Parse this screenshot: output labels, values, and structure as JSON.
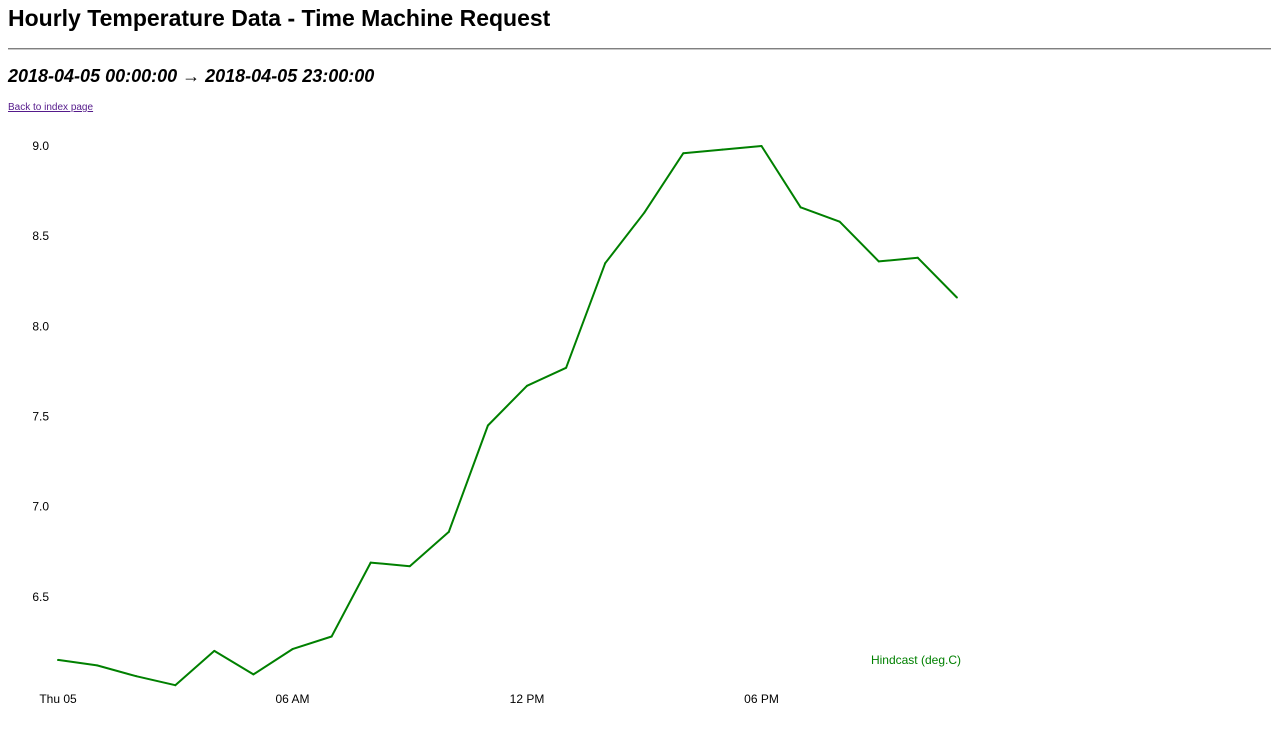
{
  "page": {
    "title": "Hourly Temperature Data - Time Machine Request",
    "range": "2018-04-05 00:00:00 → 2018-04-05 23:00:00",
    "back_link": "Back to index page"
  },
  "colors": {
    "series": "#008000",
    "link": "#551a8b",
    "text": "#000000"
  },
  "chart_data": {
    "type": "line",
    "title": "",
    "xlabel": "",
    "ylabel": "",
    "ylim": [
      6.0,
      9.0
    ],
    "xlim": [
      "2018-04-05 00:00:00",
      "2018-04-06 00:00:00"
    ],
    "grid": false,
    "legend": "bottom-right",
    "y_ticks": [
      "6.5",
      "7.0",
      "7.5",
      "8.0",
      "8.5",
      "9.0"
    ],
    "x_ticks": [
      {
        "x": "2018-04-05 00:00:00",
        "label": "Thu 05"
      },
      {
        "x": "2018-04-05 06:00:00",
        "label": "06 AM"
      },
      {
        "x": "2018-04-05 12:00:00",
        "label": "12 PM"
      },
      {
        "x": "2018-04-05 18:00:00",
        "label": "06 PM"
      }
    ],
    "x": [
      "2018-04-05 00:00:00",
      "2018-04-05 01:00:00",
      "2018-04-05 02:00:00",
      "2018-04-05 03:00:00",
      "2018-04-05 04:00:00",
      "2018-04-05 05:00:00",
      "2018-04-05 06:00:00",
      "2018-04-05 07:00:00",
      "2018-04-05 08:00:00",
      "2018-04-05 09:00:00",
      "2018-04-05 10:00:00",
      "2018-04-05 11:00:00",
      "2018-04-05 12:00:00",
      "2018-04-05 13:00:00",
      "2018-04-05 14:00:00",
      "2018-04-05 15:00:00",
      "2018-04-05 16:00:00",
      "2018-04-05 17:00:00",
      "2018-04-05 18:00:00",
      "2018-04-05 19:00:00",
      "2018-04-05 20:00:00",
      "2018-04-05 21:00:00",
      "2018-04-05 22:00:00",
      "2018-04-05 23:00:00"
    ],
    "series": [
      {
        "name": "Hindcast (deg.C)",
        "color": "#008000",
        "values": [
          6.15,
          6.12,
          6.06,
          6.01,
          6.2,
          6.07,
          6.21,
          6.28,
          6.69,
          6.67,
          6.86,
          7.45,
          7.67,
          7.77,
          8.35,
          8.63,
          8.96,
          8.98,
          9.0,
          8.66,
          8.58,
          8.36,
          8.38,
          8.16
        ]
      }
    ]
  }
}
